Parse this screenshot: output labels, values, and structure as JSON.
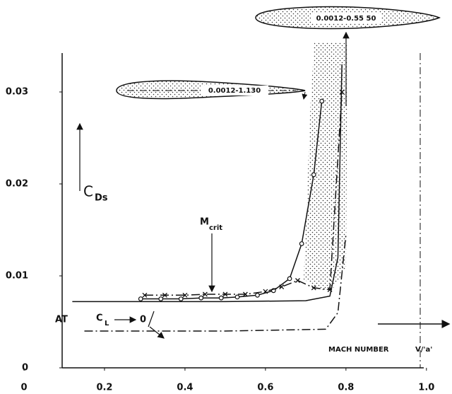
{
  "chart_data": {
    "type": "line",
    "ylabel": {
      "text": "C",
      "sub": "Ds"
    },
    "xlabel": "MACH NUMBER",
    "xlabel_unit": "V/'a'",
    "annotations": {
      "mcrit": {
        "text": "M",
        "sub": "crit"
      },
      "cl": {
        "prefix": "AT",
        "text": "C",
        "sub": "L",
        "target": "0"
      },
      "airfoil_1": "0.0012-1.130",
      "airfoil_2": "0.0012-0.55 50"
    },
    "xlim": [
      0,
      1.06
    ],
    "ylim": [
      0,
      0.036
    ],
    "xticks": [
      0,
      0.2,
      0.4,
      0.6,
      0.8,
      {
        "value": 1,
        "label": "1.0"
      }
    ],
    "yticks": [
      0,
      0.01,
      0.02,
      0.03
    ],
    "series": [
      {
        "marker": "circle",
        "dash": "solid",
        "color": "#111",
        "x": [
          0.29,
          0.34,
          0.39,
          0.44,
          0.49,
          0.53,
          0.58,
          0.62,
          0.66,
          0.69,
          0.72,
          0.74
        ],
        "values": [
          0.0075,
          0.0075,
          0.0075,
          0.0076,
          0.0076,
          0.0077,
          0.0079,
          0.0084,
          0.0097,
          0.0135,
          0.021,
          0.029
        ]
      },
      {
        "marker": "cross",
        "dash": "dashdot",
        "color": "#111",
        "x": [
          0.3,
          0.35,
          0.4,
          0.45,
          0.5,
          0.55,
          0.6,
          0.64,
          0.68,
          0.72,
          0.76,
          0.79
        ],
        "values": [
          0.0079,
          0.0079,
          0.0079,
          0.008,
          0.008,
          0.008,
          0.0083,
          0.0088,
          0.0095,
          0.0087,
          0.0085,
          0.03
        ]
      },
      {
        "marker": "none",
        "dash": "solid",
        "color": "#111",
        "x": [
          0.12,
          0.5,
          0.7,
          0.76,
          0.78,
          0.79
        ],
        "values": [
          0.0072,
          0.0072,
          0.0073,
          0.0078,
          0.012,
          0.033
        ]
      },
      {
        "marker": "none",
        "dash": "dashdot",
        "color": "#111",
        "x": [
          0.15,
          0.5,
          0.75,
          0.78,
          0.8
        ],
        "values": [
          0.004,
          0.004,
          0.0042,
          0.006,
          0.0145
        ]
      }
    ]
  }
}
